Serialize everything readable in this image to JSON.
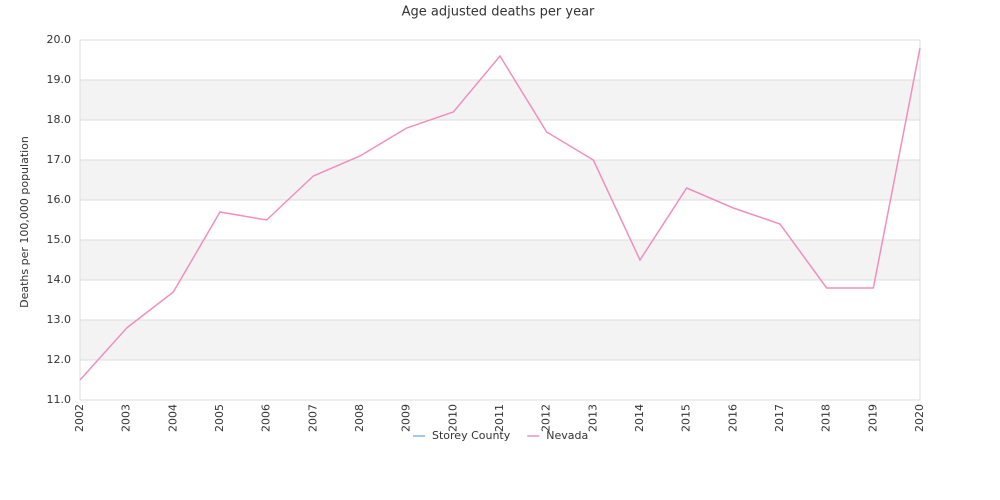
{
  "chart_data": {
    "type": "line",
    "title": "Age adjusted deaths per year",
    "y_label": "Deaths per 100,000 population",
    "categories": [
      "2002",
      "2003",
      "2004",
      "2005",
      "2006",
      "2007",
      "2008",
      "2009",
      "2010",
      "2011",
      "2012",
      "2013",
      "2014",
      "2015",
      "2016",
      "2017",
      "2018",
      "2019",
      "2020"
    ],
    "series": [
      {
        "name": "Storey County",
        "color": "#7cb5ec",
        "values": [
          null,
          null,
          null,
          null,
          null,
          null,
          null,
          null,
          null,
          null,
          null,
          null,
          null,
          null,
          null,
          null,
          null,
          null,
          null
        ]
      },
      {
        "name": "Nevada",
        "color": "#f08fc0",
        "values": [
          11.5,
          12.8,
          13.7,
          15.7,
          15.5,
          16.6,
          17.1,
          17.8,
          18.2,
          19.6,
          17.7,
          17.0,
          14.5,
          16.3,
          15.8,
          15.4,
          13.8,
          13.8,
          19.8
        ]
      }
    ],
    "ylim": [
      11,
      20
    ],
    "yticks": [
      {
        "value": 11,
        "label": "11.0"
      },
      {
        "value": 12,
        "label": "12.0"
      },
      {
        "value": 13,
        "label": "13.0"
      },
      {
        "value": 14,
        "label": "14.0"
      },
      {
        "value": 15,
        "label": "15.0"
      },
      {
        "value": 16,
        "label": "16.0"
      },
      {
        "value": 17,
        "label": "17.0"
      },
      {
        "value": 18,
        "label": "18.0"
      },
      {
        "value": 19,
        "label": "19.0"
      },
      {
        "value": 20,
        "label": "20.0"
      }
    ],
    "grid": true,
    "legend": "bottom"
  }
}
